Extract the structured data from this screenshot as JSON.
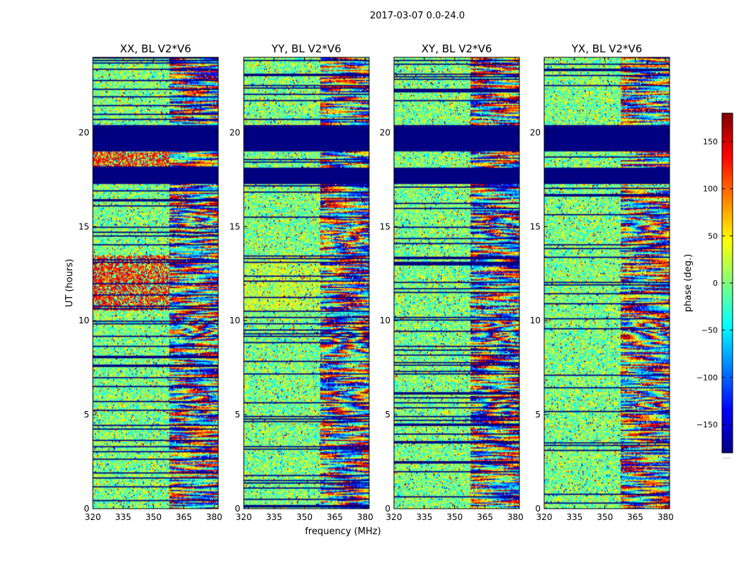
{
  "figure": {
    "suptitle": "2017-03-07 0.0-24.0",
    "ylabel": "UT (hours)",
    "xlabel": "frequency (MHz)",
    "colorbar_label": "phase (deg.)",
    "colorbar_corner_text": "......"
  },
  "colors": {
    "flag": "#000080",
    "frame": "#000000",
    "background": "#ffffff",
    "jet": [
      "#000080",
      "#0000ff",
      "#0080ff",
      "#00ffff",
      "#80ff80",
      "#ffff00",
      "#ff8000",
      "#ff0000",
      "#800000"
    ]
  },
  "chart_data": [
    {
      "type": "heatmap",
      "title": "XX, BL V2*V6",
      "xlabel": "frequency (MHz)",
      "ylabel": "UT (hours)",
      "xlim": [
        320,
        382
      ],
      "ylim": [
        0,
        24
      ],
      "xticks": [
        320,
        335,
        350,
        365,
        380
      ],
      "yticks": [
        0,
        5,
        10,
        15,
        20
      ],
      "zlim": [
        -180,
        180
      ],
      "flagged_ut_ranges": [
        [
          17.3,
          18.1
        ],
        [
          19.0,
          20.4
        ]
      ],
      "phase_ramps": [
        {
          "ut": 9.5,
          "start_mhz": 363,
          "strength": 1.0
        },
        {
          "ut": 15.2,
          "start_mhz": 362,
          "strength": 0.7
        },
        {
          "ut": 5.7,
          "start_mhz": 361,
          "strength": 0.8
        }
      ],
      "colour_bias": "red/orange in 17.3-19.0 h and 10.5-13.5 h"
    },
    {
      "type": "heatmap",
      "title": "YY, BL V2*V6",
      "xlabel": "frequency (MHz)",
      "ylabel": "UT (hours)",
      "xlim": [
        320,
        382
      ],
      "ylim": [
        0,
        24
      ],
      "xticks": [
        320,
        335,
        350,
        365,
        380
      ],
      "yticks": [
        0,
        5,
        10,
        15,
        20
      ],
      "zlim": [
        -180,
        180
      ],
      "flagged_ut_ranges": [
        [
          17.3,
          18.1
        ],
        [
          19.0,
          20.4
        ]
      ],
      "phase_ramps": [
        {
          "ut": 9.0,
          "start_mhz": 362,
          "strength": 1.0
        },
        {
          "ut": 14.5,
          "start_mhz": 363,
          "strength": 0.8
        },
        {
          "ut": 6.1,
          "start_mhz": 362,
          "strength": 0.7
        }
      ],
      "colour_bias": "yellow/green bands in 10.5-13.5 h"
    },
    {
      "type": "heatmap",
      "title": "XY, BL V2*V6",
      "xlabel": "frequency (MHz)",
      "ylabel": "UT (hours)",
      "xlim": [
        320,
        382
      ],
      "ylim": [
        0,
        24
      ],
      "xticks": [
        320,
        335,
        350,
        365,
        380
      ],
      "yticks": [
        0,
        5,
        10,
        15,
        20
      ],
      "zlim": [
        -180,
        180
      ],
      "flagged_ut_ranges": [
        [
          17.3,
          18.1
        ],
        [
          19.0,
          20.4
        ]
      ],
      "phase_ramps": [
        {
          "ut": 9.4,
          "start_mhz": 364,
          "strength": 1.0
        },
        {
          "ut": 14.8,
          "start_mhz": 363,
          "strength": 0.7
        },
        {
          "ut": 5.6,
          "start_mhz": 363,
          "strength": 0.7
        }
      ],
      "colour_bias": "none"
    },
    {
      "type": "heatmap",
      "title": "YX, BL V2*V6",
      "xlabel": "frequency (MHz)",
      "ylabel": "UT (hours)",
      "xlim": [
        320,
        382
      ],
      "ylim": [
        0,
        24
      ],
      "xticks": [
        320,
        335,
        350,
        365,
        380
      ],
      "yticks": [
        0,
        5,
        10,
        15,
        20
      ],
      "zlim": [
        -180,
        180
      ],
      "flagged_ut_ranges": [
        [
          17.3,
          18.1
        ],
        [
          19.0,
          20.4
        ]
      ],
      "phase_ramps": [
        {
          "ut": 9.5,
          "start_mhz": 362,
          "strength": 1.0
        },
        {
          "ut": 15.0,
          "start_mhz": 362,
          "strength": 0.7
        },
        {
          "ut": 5.6,
          "start_mhz": 363,
          "strength": 0.7
        }
      ],
      "colour_bias": "none"
    }
  ],
  "colorbar": {
    "type": "colorbar",
    "colormap": "jet",
    "range": [
      -180,
      180
    ],
    "ticks": [
      -150,
      -100,
      -50,
      0,
      50,
      100,
      150
    ],
    "tick_labels": [
      "−150",
      "−100",
      "−50",
      "0",
      "50",
      "100",
      "150"
    ],
    "label": "phase (deg.)"
  }
}
